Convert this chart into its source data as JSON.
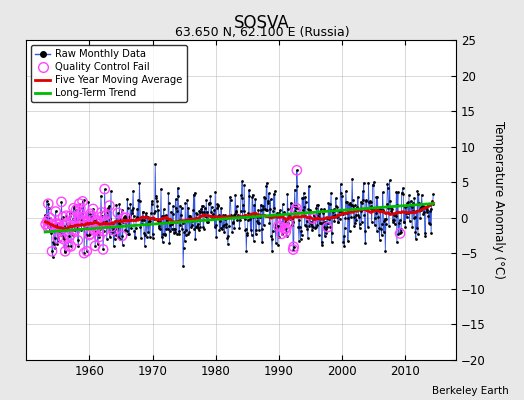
{
  "title": "SOSVA",
  "subtitle": "63.650 N, 62.100 E (Russia)",
  "ylabel": "Temperature Anomaly (°C)",
  "credit": "Berkeley Earth",
  "xlim": [
    1950,
    2018
  ],
  "ylim": [
    -20,
    25
  ],
  "yticks": [
    -20,
    -15,
    -10,
    -5,
    0,
    5,
    10,
    15,
    20,
    25
  ],
  "xticks": [
    1960,
    1970,
    1980,
    1990,
    2000,
    2010
  ],
  "background_color": "#e8e8e8",
  "plot_bg_color": "#ffffff",
  "raw_line_color": "#3355dd",
  "raw_dot_color": "#000000",
  "qc_fail_color": "#ff44ff",
  "moving_avg_color": "#dd0000",
  "trend_color": "#00bb00",
  "seed": 42
}
